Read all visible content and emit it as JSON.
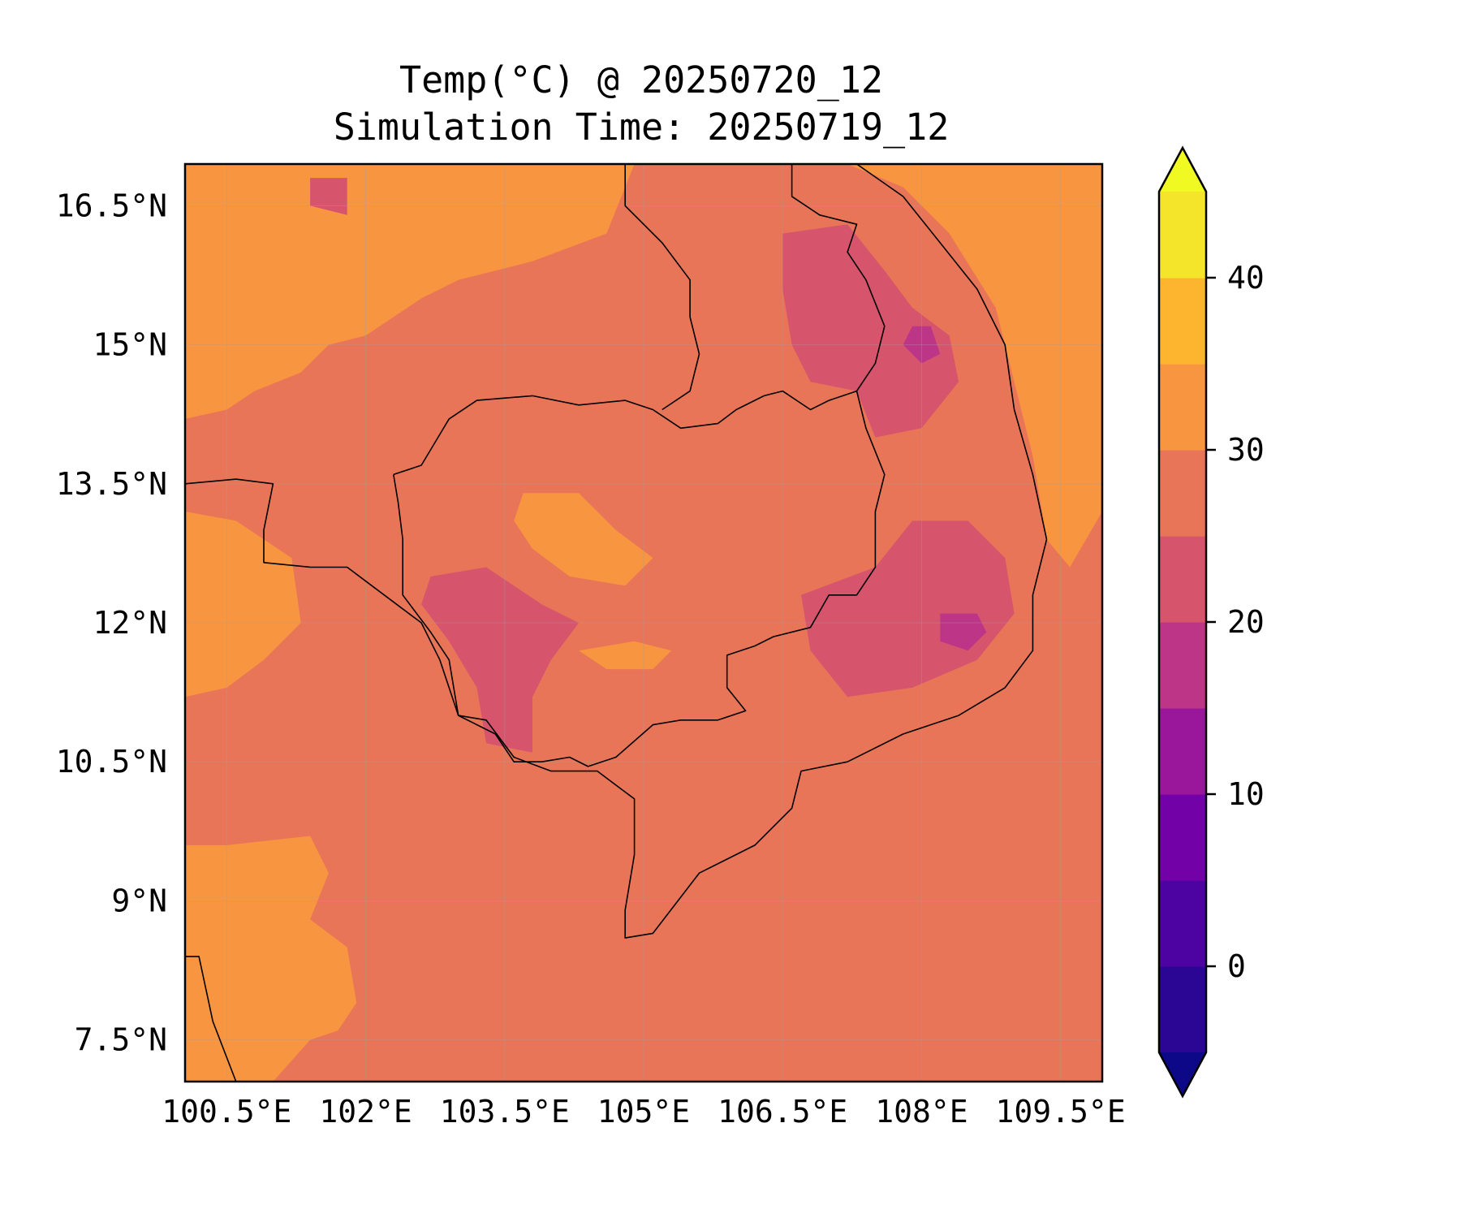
{
  "chart_data": {
    "type": "heatmap",
    "title": "Temp(°C) @ 20250720_12",
    "subtitle": "Simulation Time: 20250719_12",
    "variable": "Temp(°C)",
    "map": {
      "lon_range": [
        100.05,
        109.95
      ],
      "lat_range": [
        7.05,
        16.95
      ],
      "x_ticks": [
        {
          "value": 100.5,
          "label": "100.5°E"
        },
        {
          "value": 102.0,
          "label": "102°E"
        },
        {
          "value": 103.5,
          "label": "103.5°E"
        },
        {
          "value": 105.0,
          "label": "105°E"
        },
        {
          "value": 106.5,
          "label": "106.5°E"
        },
        {
          "value": 108.0,
          "label": "108°E"
        },
        {
          "value": 109.5,
          "label": "109.5°E"
        }
      ],
      "y_ticks": [
        {
          "value": 16.5,
          "label": "16.5°N"
        },
        {
          "value": 15.0,
          "label": "15°N"
        },
        {
          "value": 13.5,
          "label": "13.5°N"
        },
        {
          "value": 12.0,
          "label": "12°N"
        },
        {
          "value": 10.5,
          "label": "10.5°N"
        },
        {
          "value": 9.0,
          "label": "9°N"
        },
        {
          "value": 7.5,
          "label": "7.5°N"
        }
      ],
      "grid": true,
      "background_level_color": "#e97558"
    },
    "colorbar": {
      "placement": "right",
      "extend": "both",
      "range": [
        -5,
        45
      ],
      "levels": [
        {
          "min": -5,
          "max": 0,
          "color": "#2b0594"
        },
        {
          "min": 0,
          "max": 5,
          "color": "#4c03a1"
        },
        {
          "min": 5,
          "max": 10,
          "color": "#7201a8"
        },
        {
          "min": 10,
          "max": 15,
          "color": "#9a179b"
        },
        {
          "min": 15,
          "max": 20,
          "color": "#bc3587"
        },
        {
          "min": 20,
          "max": 25,
          "color": "#d6556d"
        },
        {
          "min": 25,
          "max": 30,
          "color": "#e97558"
        },
        {
          "min": 30,
          "max": 35,
          "color": "#f89540"
        },
        {
          "min": 35,
          "max": 40,
          "color": "#fdb42f"
        },
        {
          "min": 40,
          "max": 45,
          "color": "#f4e42a"
        }
      ],
      "under_color": "#0d0887",
      "over_color": "#f0f921",
      "ticks": [
        {
          "value": 0,
          "label": "0"
        },
        {
          "value": 10,
          "label": "10"
        },
        {
          "value": 20,
          "label": "20"
        },
        {
          "value": 30,
          "label": "30"
        },
        {
          "value": 40,
          "label": "40"
        }
      ]
    },
    "regions": [
      {
        "name": "warm-region-northwest",
        "color": "#f89540",
        "lonlat": [
          [
            100.05,
            16.95
          ],
          [
            104.9,
            16.95
          ],
          [
            104.6,
            16.2
          ],
          [
            103.8,
            15.9
          ],
          [
            103.0,
            15.7
          ],
          [
            102.6,
            15.5
          ],
          [
            102.0,
            15.1
          ],
          [
            101.6,
            15.0
          ],
          [
            101.3,
            14.7
          ],
          [
            100.8,
            14.5
          ],
          [
            100.5,
            14.3
          ],
          [
            100.05,
            14.2
          ]
        ]
      },
      {
        "name": "warm-region-west-coast",
        "color": "#f89540",
        "lonlat": [
          [
            100.05,
            13.2
          ],
          [
            100.6,
            13.1
          ],
          [
            101.2,
            12.7
          ],
          [
            101.3,
            12.0
          ],
          [
            100.9,
            11.6
          ],
          [
            100.5,
            11.3
          ],
          [
            100.05,
            11.2
          ]
        ]
      },
      {
        "name": "warm-region-southwest",
        "color": "#f89540",
        "lonlat": [
          [
            100.05,
            9.6
          ],
          [
            100.5,
            9.6
          ],
          [
            101.4,
            9.7
          ],
          [
            101.6,
            9.3
          ],
          [
            101.4,
            8.8
          ],
          [
            101.8,
            8.5
          ],
          [
            101.9,
            7.9
          ],
          [
            101.7,
            7.6
          ],
          [
            101.4,
            7.5
          ],
          [
            101.0,
            7.05
          ],
          [
            100.05,
            7.05
          ]
        ]
      },
      {
        "name": "warm-region-east-sea",
        "color": "#f89540",
        "lonlat": [
          [
            107.2,
            16.95
          ],
          [
            109.95,
            16.95
          ],
          [
            109.95,
            13.2
          ],
          [
            109.6,
            12.6
          ],
          [
            109.35,
            12.9
          ],
          [
            109.2,
            13.8
          ],
          [
            109.0,
            14.6
          ],
          [
            108.8,
            15.4
          ],
          [
            108.3,
            16.2
          ],
          [
            107.8,
            16.7
          ]
        ]
      },
      {
        "name": "warm-patch-central",
        "color": "#f89540",
        "lonlat": [
          [
            103.7,
            13.4
          ],
          [
            104.3,
            13.4
          ],
          [
            104.7,
            13.0
          ],
          [
            105.1,
            12.7
          ],
          [
            104.8,
            12.4
          ],
          [
            104.2,
            12.5
          ],
          [
            103.8,
            12.8
          ],
          [
            103.6,
            13.1
          ]
        ]
      },
      {
        "name": "warm-patch-south",
        "color": "#f89540",
        "lonlat": [
          [
            104.3,
            11.7
          ],
          [
            104.9,
            11.8
          ],
          [
            105.3,
            11.7
          ],
          [
            105.1,
            11.5
          ],
          [
            104.6,
            11.5
          ]
        ]
      },
      {
        "name": "cool-region-tonle-sap-west",
        "color": "#d6556d",
        "lonlat": [
          [
            102.7,
            12.5
          ],
          [
            103.3,
            12.6
          ],
          [
            103.9,
            12.2
          ],
          [
            104.3,
            12.0
          ],
          [
            104.0,
            11.6
          ],
          [
            103.8,
            11.2
          ],
          [
            103.8,
            10.6
          ],
          [
            103.3,
            10.7
          ],
          [
            103.2,
            11.3
          ],
          [
            102.9,
            11.8
          ],
          [
            102.6,
            12.2
          ]
        ]
      },
      {
        "name": "cool-region-central-highlands",
        "color": "#d6556d",
        "lonlat": [
          [
            106.5,
            16.2
          ],
          [
            107.2,
            16.3
          ],
          [
            107.6,
            15.8
          ],
          [
            107.9,
            15.4
          ],
          [
            108.3,
            15.1
          ],
          [
            108.4,
            14.6
          ],
          [
            108.0,
            14.1
          ],
          [
            107.5,
            14.0
          ],
          [
            107.3,
            14.5
          ],
          [
            106.8,
            14.6
          ],
          [
            106.6,
            15.0
          ],
          [
            106.5,
            15.6
          ]
        ]
      },
      {
        "name": "cool-region-southeast",
        "color": "#d6556d",
        "lonlat": [
          [
            107.5,
            12.6
          ],
          [
            107.9,
            13.1
          ],
          [
            108.5,
            13.1
          ],
          [
            108.9,
            12.7
          ],
          [
            109.0,
            12.1
          ],
          [
            108.6,
            11.6
          ],
          [
            107.9,
            11.3
          ],
          [
            107.2,
            11.2
          ],
          [
            106.8,
            11.7
          ],
          [
            106.7,
            12.3
          ]
        ]
      },
      {
        "name": "cool-patch-north",
        "color": "#d6556d",
        "lonlat": [
          [
            101.4,
            16.8
          ],
          [
            101.8,
            16.8
          ],
          [
            101.8,
            16.4
          ],
          [
            101.4,
            16.5
          ]
        ]
      },
      {
        "name": "cool-core-southeast",
        "color": "#bc3587",
        "lonlat": [
          [
            108.2,
            12.1
          ],
          [
            108.6,
            12.1
          ],
          [
            108.7,
            11.9
          ],
          [
            108.5,
            11.7
          ],
          [
            108.2,
            11.8
          ]
        ]
      },
      {
        "name": "cool-core-highlands",
        "color": "#bc3587",
        "lonlat": [
          [
            107.9,
            15.2
          ],
          [
            108.1,
            15.2
          ],
          [
            108.2,
            14.9
          ],
          [
            108.0,
            14.8
          ],
          [
            107.8,
            15.0
          ]
        ]
      }
    ],
    "boundaries": [
      {
        "name": "border-cambodia",
        "lonlat": [
          [
            102.3,
            13.6
          ],
          [
            102.6,
            13.7
          ],
          [
            102.9,
            14.2
          ],
          [
            103.2,
            14.4
          ],
          [
            103.8,
            14.45
          ],
          [
            104.3,
            14.35
          ],
          [
            104.8,
            14.4
          ],
          [
            105.1,
            14.3
          ],
          [
            105.4,
            14.1
          ],
          [
            105.8,
            14.15
          ],
          [
            106.0,
            14.3
          ],
          [
            106.3,
            14.45
          ],
          [
            106.5,
            14.5
          ],
          [
            106.8,
            14.3
          ],
          [
            107.0,
            14.4
          ],
          [
            107.3,
            14.5
          ],
          [
            107.4,
            14.1
          ],
          [
            107.6,
            13.6
          ],
          [
            107.5,
            13.2
          ],
          [
            107.5,
            12.6
          ],
          [
            107.3,
            12.3
          ],
          [
            107.0,
            12.3
          ],
          [
            106.8,
            11.95
          ],
          [
            106.4,
            11.85
          ],
          [
            106.2,
            11.75
          ],
          [
            105.9,
            11.65
          ],
          [
            105.9,
            11.3
          ],
          [
            106.1,
            11.05
          ],
          [
            105.8,
            10.95
          ],
          [
            105.4,
            10.95
          ],
          [
            105.1,
            10.9
          ],
          [
            104.7,
            10.55
          ],
          [
            104.4,
            10.45
          ],
          [
            104.2,
            10.55
          ],
          [
            103.9,
            10.5
          ],
          [
            103.6,
            10.5
          ],
          [
            103.4,
            10.8
          ],
          [
            103.0,
            11.0
          ],
          [
            102.9,
            11.6
          ],
          [
            102.7,
            11.9
          ],
          [
            102.4,
            12.3
          ],
          [
            102.4,
            12.9
          ],
          [
            102.35,
            13.3
          ],
          [
            102.3,
            13.6
          ]
        ]
      },
      {
        "name": "border-laos-vietnam",
        "lonlat": [
          [
            106.6,
            16.95
          ],
          [
            106.6,
            16.6
          ],
          [
            106.9,
            16.4
          ],
          [
            107.3,
            16.3
          ],
          [
            107.2,
            16.0
          ],
          [
            107.4,
            15.7
          ],
          [
            107.6,
            15.2
          ],
          [
            107.5,
            14.8
          ],
          [
            107.3,
            14.5
          ]
        ]
      },
      {
        "name": "border-thailand-laos",
        "lonlat": [
          [
            104.8,
            16.95
          ],
          [
            104.8,
            16.5
          ],
          [
            105.2,
            16.1
          ],
          [
            105.5,
            15.7
          ],
          [
            105.5,
            15.3
          ],
          [
            105.6,
            14.9
          ],
          [
            105.5,
            14.5
          ],
          [
            105.2,
            14.3
          ]
        ]
      },
      {
        "name": "coast-gulf-of-thailand",
        "lonlat": [
          [
            100.05,
            13.5
          ],
          [
            100.6,
            13.55
          ],
          [
            101.0,
            13.5
          ],
          [
            100.9,
            13.0
          ],
          [
            100.9,
            12.65
          ],
          [
            101.4,
            12.6
          ],
          [
            101.8,
            12.6
          ],
          [
            102.2,
            12.3
          ],
          [
            102.6,
            12.0
          ],
          [
            102.8,
            11.6
          ],
          [
            103.0,
            11.0
          ],
          [
            103.3,
            10.95
          ],
          [
            103.6,
            10.55
          ],
          [
            104.0,
            10.4
          ],
          [
            104.5,
            10.4
          ],
          [
            104.9,
            10.1
          ],
          [
            104.9,
            9.5
          ],
          [
            104.8,
            8.9
          ],
          [
            104.8,
            8.6
          ],
          [
            105.1,
            8.65
          ],
          [
            105.6,
            9.3
          ],
          [
            106.2,
            9.6
          ],
          [
            106.6,
            10.0
          ],
          [
            106.7,
            10.4
          ],
          [
            107.2,
            10.5
          ],
          [
            107.8,
            10.8
          ],
          [
            108.4,
            11.0
          ],
          [
            108.9,
            11.3
          ],
          [
            109.2,
            11.7
          ],
          [
            109.2,
            12.3
          ],
          [
            109.35,
            12.9
          ],
          [
            109.2,
            13.6
          ],
          [
            109.0,
            14.3
          ],
          [
            108.9,
            15.0
          ],
          [
            108.6,
            15.6
          ],
          [
            108.2,
            16.1
          ],
          [
            107.8,
            16.6
          ],
          [
            107.3,
            16.95
          ]
        ]
      },
      {
        "name": "coast-malay-peninsula",
        "lonlat": [
          [
            100.05,
            8.4
          ],
          [
            100.2,
            8.4
          ],
          [
            100.35,
            7.7
          ],
          [
            100.6,
            7.05
          ]
        ]
      }
    ]
  }
}
